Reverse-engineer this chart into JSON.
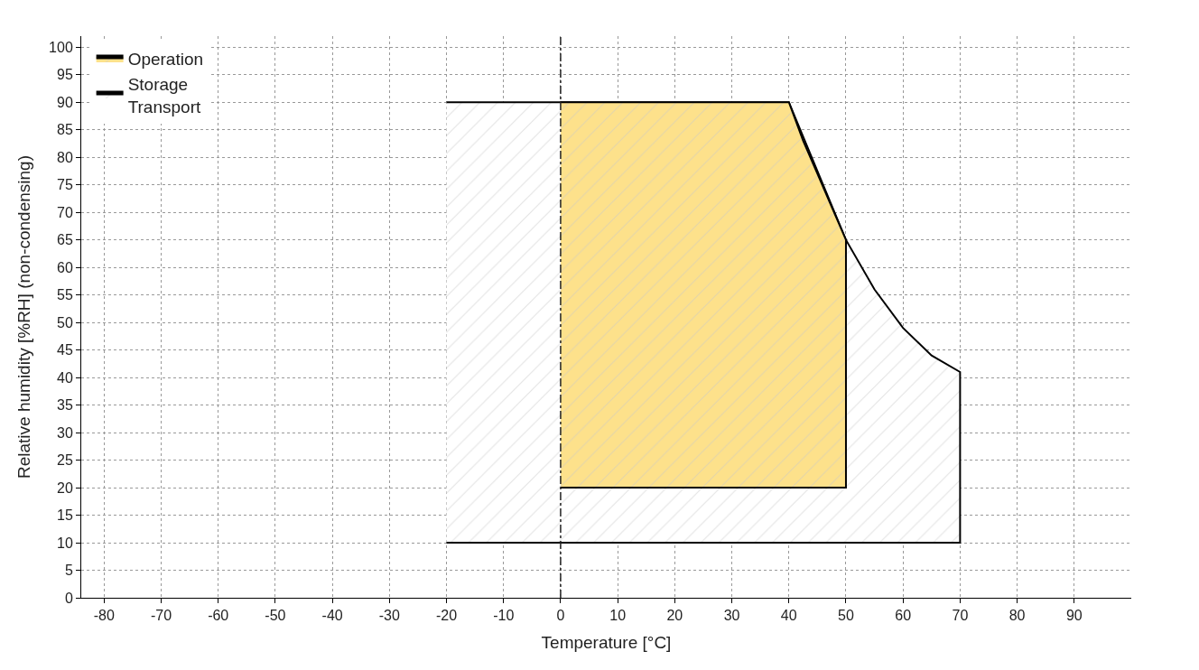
{
  "chart_data": {
    "type": "area",
    "xlabel": "Temperature [°C]",
    "ylabel": "Relative humidity [%RH] (non-condensing)",
    "xlim": [
      -84,
      100
    ],
    "xticks": [
      -80,
      -70,
      -60,
      -50,
      -40,
      -30,
      -20,
      -10,
      0,
      10,
      20,
      30,
      40,
      50,
      60,
      70,
      80,
      90
    ],
    "ylim": [
      0,
      102
    ],
    "yticks": [
      0,
      5,
      10,
      15,
      20,
      25,
      30,
      35,
      40,
      45,
      50,
      55,
      60,
      65,
      70,
      75,
      80,
      85,
      90,
      95,
      100
    ],
    "grid": true,
    "legend": "top left",
    "line_style": "solid",
    "series": [
      {
        "name": "Storage\nTransport",
        "color": "#ffffff",
        "x": [
          -20,
          40,
          50,
          55,
          60,
          65,
          70,
          70,
          -20
        ],
        "values": [
          90,
          90,
          65,
          56,
          49,
          44,
          41,
          10,
          10
        ]
      },
      {
        "name": "Operation",
        "color": "#fde18b",
        "x": [
          0,
          40,
          42.5,
          45,
          47.5,
          50,
          50,
          0
        ],
        "values": [
          90,
          90,
          83,
          77,
          71,
          65,
          20,
          20
        ]
      }
    ],
    "ref_lines": [
      {
        "axis": "x",
        "value": 0,
        "label": null,
        "color": "#222222",
        "line_style": "dashed"
      }
    ]
  }
}
